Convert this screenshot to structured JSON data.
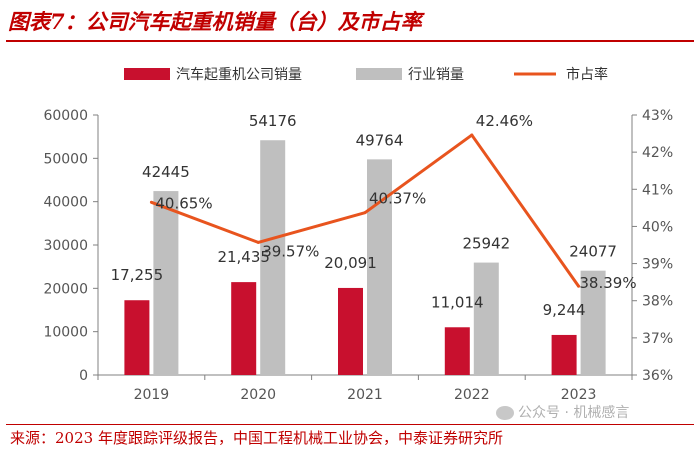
{
  "title": "图表7：公司汽车起重机销量（台）及市占率",
  "source": "来源：2023 年度跟踪评级报告，中国工程机械工业协会，中泰证券研究所",
  "watermark": "公众号 · 机械感言",
  "colors": {
    "company": "#c8102e",
    "industry": "#bfbfbf",
    "share": "#e8541e",
    "accent": "#c00000"
  },
  "chart_data": {
    "type": "bar",
    "categories": [
      "2019",
      "2020",
      "2021",
      "2022",
      "2023"
    ],
    "series": [
      {
        "name": "汽车起重机公司销量",
        "type": "bar",
        "axis": "left",
        "values": [
          17255,
          21435,
          20091,
          11014,
          9244
        ],
        "labels": [
          "17,255",
          "21,435",
          "20,091",
          "11,014",
          "9,244"
        ]
      },
      {
        "name": "行业销量",
        "type": "bar",
        "axis": "left",
        "values": [
          42445,
          54176,
          49764,
          25942,
          24077
        ],
        "labels": [
          "42445",
          "54176",
          "49764",
          "25942",
          "24077"
        ]
      },
      {
        "name": "市占率",
        "type": "line",
        "axis": "right",
        "values": [
          40.65,
          39.57,
          40.37,
          42.46,
          38.39
        ],
        "labels": [
          "40.65%",
          "39.57%",
          "40.37%",
          "42.46%",
          "38.39%"
        ]
      }
    ],
    "ylim": [
      0,
      60000
    ],
    "y_ticks": [
      "0",
      "10000",
      "20000",
      "30000",
      "40000",
      "50000",
      "60000"
    ],
    "y2lim": [
      36,
      43
    ],
    "y2_ticks": [
      "36%",
      "37%",
      "38%",
      "39%",
      "40%",
      "41%",
      "42%",
      "43%"
    ],
    "legend_position": "top",
    "grid": false
  }
}
